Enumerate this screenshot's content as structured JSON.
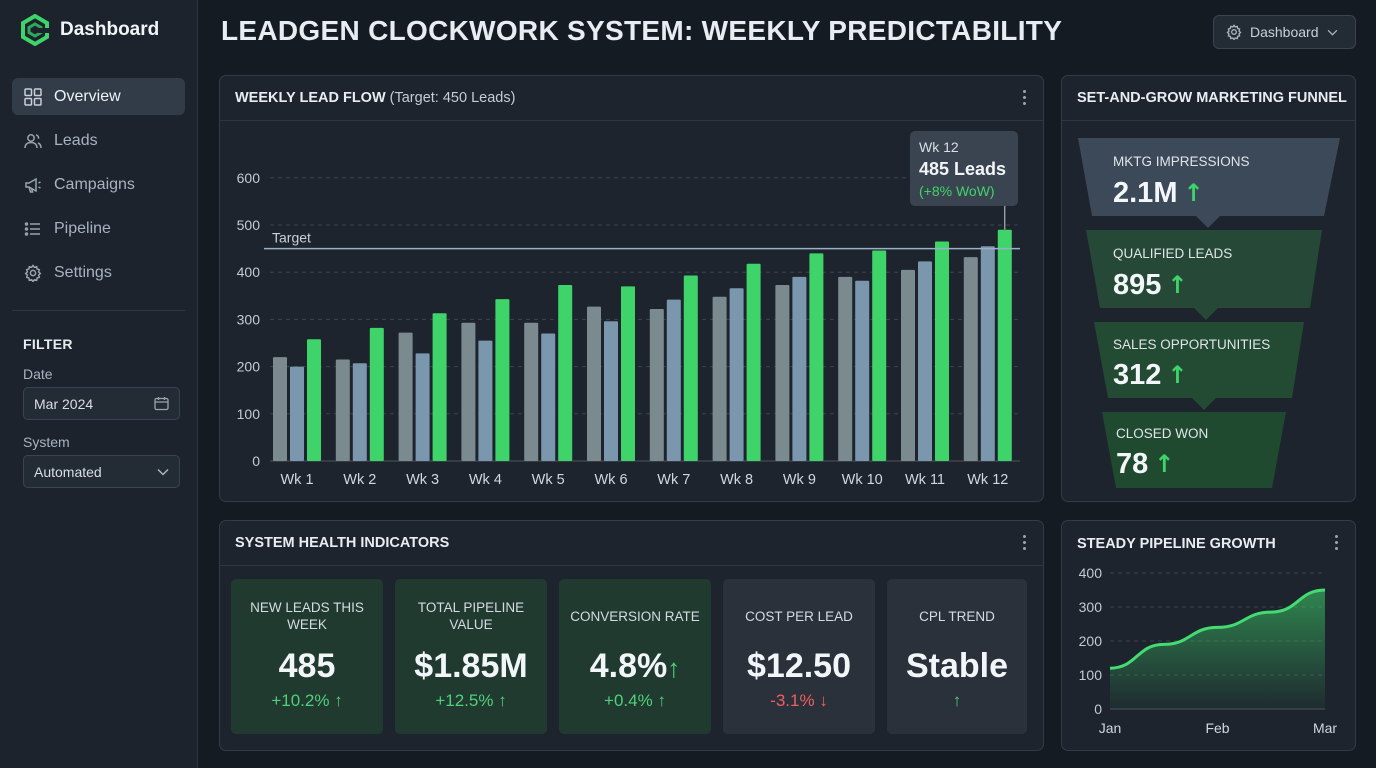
{
  "app": {
    "title": "Dashboard"
  },
  "nav": [
    {
      "label": "Overview",
      "icon": "grid-icon",
      "active": true
    },
    {
      "label": "Leads",
      "icon": "users-icon",
      "active": false
    },
    {
      "label": "Campaigns",
      "icon": "megaphone-icon",
      "active": false
    },
    {
      "label": "Pipeline",
      "icon": "list-icon",
      "active": false
    },
    {
      "label": "Settings",
      "icon": "gear-icon",
      "active": false
    }
  ],
  "filter": {
    "title": "FILTER",
    "date_label": "Date",
    "date_value": "Mar 2024",
    "system_label": "System",
    "system_value": "Automated"
  },
  "header": {
    "title": "LEADGEN CLOCKWORK SYSTEM: WEEKLY PREDICTABILITY",
    "dropdown": "Dashboard"
  },
  "lead_flow": {
    "title": "WEEKLY LEAD FLOW",
    "subtitle": "(Target: 450 Leads)",
    "target_label": "Target",
    "tooltip": {
      "week": "Wk 12",
      "value": "485 Leads",
      "change": "(+8% WoW)"
    }
  },
  "funnel": {
    "title": "SET-AND-GROW MARKETING FUNNEL",
    "stages": [
      {
        "label": "MKTG IMPRESSIONS",
        "value": "2.1M"
      },
      {
        "label": "QUALIFIED LEADS",
        "value": "895"
      },
      {
        "label": "SALES OPPORTUNITIES",
        "value": "312"
      },
      {
        "label": "CLOSED WON",
        "value": "78"
      }
    ]
  },
  "health": {
    "title": "SYSTEM HEALTH INDICATORS",
    "kpis": [
      {
        "label": "NEW LEADS THIS WEEK",
        "value": "485",
        "change": "+10.2%",
        "dir": "up"
      },
      {
        "label": "TOTAL PIPELINE VALUE",
        "value": "$1.85M",
        "change": "+12.5%",
        "dir": "up"
      },
      {
        "label": "CONVERSION RATE",
        "value": "4.8%",
        "change": "+0.4%",
        "dir": "up"
      },
      {
        "label": "COST PER LEAD",
        "value": "$12.50",
        "change": "-3.1%",
        "dir": "down"
      },
      {
        "label": "CPL TREND",
        "value": "Stable",
        "change": "",
        "dir": "up"
      }
    ]
  },
  "pipeline": {
    "title": "STEADY PIPELINE GROWTH"
  },
  "colors": {
    "accent_green": "#3ed46a",
    "series_gray": "#7b8a8f",
    "series_blue": "#7b97ad",
    "down_red": "#ef5f5f"
  },
  "chart_data": [
    {
      "type": "bar",
      "title": "WEEKLY LEAD FLOW (Target: 450 Leads)",
      "categories": [
        "Wk 1",
        "Wk 2",
        "Wk 3",
        "Wk 4",
        "Wk 5",
        "Wk 6",
        "Wk 7",
        "Wk 8",
        "Wk 9",
        "Wk 10",
        "Wk 11",
        "Wk 12"
      ],
      "series": [
        {
          "values": [
            220,
            215,
            272,
            293,
            293,
            327,
            322,
            348,
            373,
            390,
            405,
            432
          ]
        },
        {
          "values": [
            200,
            207,
            228,
            255,
            270,
            296,
            342,
            366,
            390,
            382,
            423,
            455
          ]
        },
        {
          "values": [
            258,
            282,
            313,
            343,
            373,
            370,
            393,
            418,
            440,
            446,
            465,
            490
          ]
        }
      ],
      "target": 450,
      "ylim": [
        0,
        600
      ],
      "yticks": [
        0,
        100,
        200,
        300,
        400,
        500,
        600
      ],
      "grid": true
    },
    {
      "type": "area",
      "title": "STEADY PIPELINE GROWTH",
      "x": [
        "Jan",
        "",
        "Feb",
        "",
        "Mar"
      ],
      "values": [
        120,
        190,
        240,
        285,
        350
      ],
      "ylim": [
        0,
        400
      ],
      "yticks": [
        0,
        100,
        200,
        300,
        400
      ],
      "xticks": [
        "Jan",
        "Feb",
        "Mar"
      ],
      "grid": true
    }
  ]
}
